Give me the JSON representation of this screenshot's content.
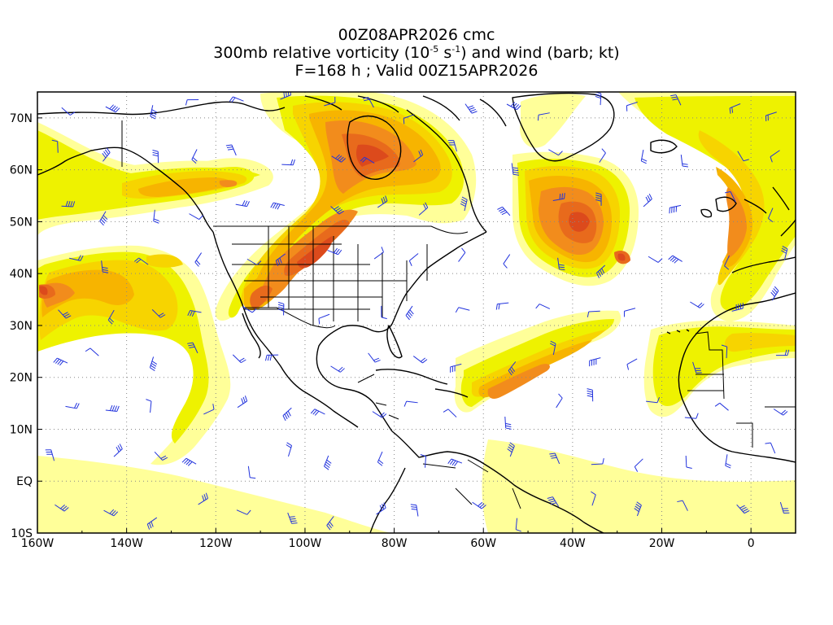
{
  "title": {
    "line1": "00Z08APR2026 cmc",
    "line2_pre": "300mb relative vorticity (10",
    "line2_exp1": "-5",
    "line2_mid": " s",
    "line2_exp2": "-1",
    "line2_post": ") and wind (barb; kt)",
    "line3": "F=168 h ; Valid 00Z15APR2026"
  },
  "map": {
    "projection": "cylindrical equidistant",
    "lon_range": [
      -160,
      10
    ],
    "lat_range": [
      -10,
      75
    ],
    "grid": "dotted",
    "x_ticks": [
      "160W",
      "140W",
      "120W",
      "100W",
      "80W",
      "60W",
      "40W",
      "20W",
      "0"
    ],
    "y_ticks": [
      "70N",
      "60N",
      "50N",
      "40N",
      "30N",
      "20N",
      "10N",
      "EQ",
      "10S"
    ],
    "shading_colors": [
      "#ffff99",
      "#eef200",
      "#f7d400",
      "#f7b400",
      "#f28c1c",
      "#e86a1c",
      "#dc4a1c"
    ],
    "barb_color": "#2233dd",
    "coastline_color": "#000000"
  }
}
